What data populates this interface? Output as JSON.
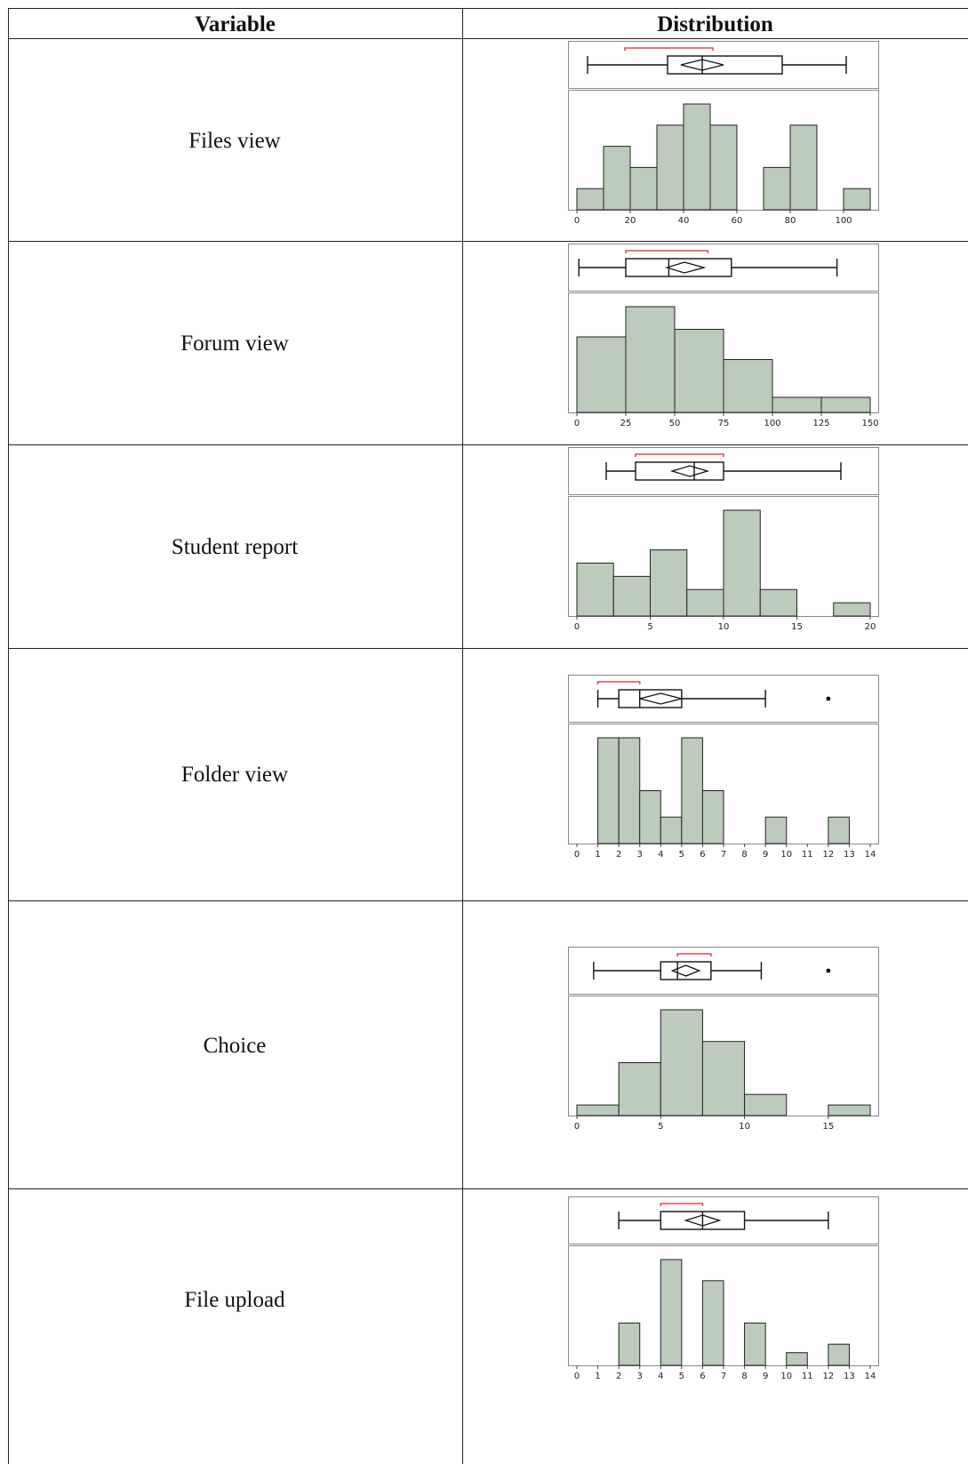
{
  "table": {
    "headers": {
      "variable": "Variable",
      "distribution": "Distribution"
    }
  },
  "chart_data": [
    {
      "type": "bar",
      "variable": "Files view",
      "xlim": [
        0,
        110
      ],
      "ticks": [
        0,
        20,
        40,
        60,
        80,
        100
      ],
      "bins": [
        [
          0,
          10
        ],
        [
          10,
          20
        ],
        [
          20,
          30
        ],
        [
          30,
          40
        ],
        [
          40,
          50
        ],
        [
          50,
          60
        ],
        [
          60,
          70
        ],
        [
          70,
          80
        ],
        [
          80,
          90
        ],
        [
          90,
          100
        ],
        [
          100,
          110
        ]
      ],
      "counts": [
        1,
        3,
        2,
        4,
        5,
        4,
        0,
        2,
        4,
        0,
        1
      ],
      "boxplot": {
        "whisker_low": 4,
        "q1": 34,
        "median": 47,
        "q3": 77,
        "whisker_high": 101,
        "mean": 47,
        "ci": [
          39,
          55
        ],
        "shortest_half": [
          18,
          51
        ],
        "outliers": []
      },
      "fill_color": "#bccbbb",
      "shortest_half_color": "#e8494f"
    },
    {
      "type": "bar",
      "variable": "Forum view",
      "xlim": [
        0,
        150
      ],
      "ticks": [
        0,
        25,
        50,
        75,
        100,
        125,
        150
      ],
      "bins": [
        [
          0,
          25
        ],
        [
          25,
          50
        ],
        [
          50,
          75
        ],
        [
          75,
          100
        ],
        [
          100,
          125
        ],
        [
          125,
          150
        ]
      ],
      "counts": [
        5,
        7,
        5.5,
        3.5,
        1,
        1
      ],
      "boxplot": {
        "whisker_low": 1,
        "q1": 25,
        "median": 47,
        "q3": 79,
        "whisker_high": 133,
        "mean": 55,
        "ci": [
          46,
          65
        ],
        "shortest_half": [
          25,
          67
        ],
        "outliers": []
      },
      "fill_color": "#bccbbb",
      "shortest_half_color": "#e8494f"
    },
    {
      "type": "bar",
      "variable": "Student report",
      "xlim": [
        0,
        20
      ],
      "ticks": [
        0,
        5,
        10,
        15,
        20
      ],
      "bins": [
        [
          0,
          2.5
        ],
        [
          2.5,
          5
        ],
        [
          5,
          7.5
        ],
        [
          7.5,
          10
        ],
        [
          10,
          12.5
        ],
        [
          12.5,
          15
        ],
        [
          15,
          17.5
        ],
        [
          17.5,
          20
        ]
      ],
      "counts": [
        4,
        3,
        5,
        2,
        8,
        2,
        0,
        1
      ],
      "boxplot": {
        "whisker_low": 2,
        "q1": 4,
        "median": 8,
        "q3": 10,
        "whisker_high": 18,
        "mean": 7.7,
        "ci": [
          6.5,
          8.9
        ],
        "shortest_half": [
          4,
          10
        ],
        "outliers": []
      },
      "fill_color": "#bccbbb",
      "shortest_half_color": "#e8494f"
    },
    {
      "type": "bar",
      "variable": "Folder view",
      "xlim": [
        0,
        14
      ],
      "ticks": [
        0,
        1,
        2,
        3,
        4,
        5,
        6,
        7,
        8,
        9,
        10,
        11,
        12,
        13,
        14
      ],
      "bins": [
        [
          1,
          2
        ],
        [
          2,
          3
        ],
        [
          3,
          4
        ],
        [
          4,
          5
        ],
        [
          5,
          6
        ],
        [
          6,
          7
        ],
        [
          7,
          8
        ],
        [
          8,
          9
        ],
        [
          9,
          10
        ],
        [
          10,
          11
        ],
        [
          11,
          12
        ],
        [
          12,
          13
        ]
      ],
      "counts": [
        4,
        4,
        2,
        1,
        4,
        2,
        0,
        0,
        1,
        0,
        0,
        1
      ],
      "boxplot": {
        "whisker_low": 1,
        "q1": 2,
        "median": 3,
        "q3": 5,
        "whisker_high": 9,
        "mean": 4,
        "ci": [
          3,
          5
        ],
        "shortest_half": [
          1,
          3
        ],
        "outliers": [
          12
        ]
      },
      "fill_color": "#bccbbb",
      "shortest_half_color": "#e8494f"
    },
    {
      "type": "bar",
      "variable": "Choice",
      "xlim": [
        0,
        17.5
      ],
      "ticks": [
        0,
        5,
        10,
        15
      ],
      "bins": [
        [
          0,
          2.5
        ],
        [
          2.5,
          5
        ],
        [
          5,
          7.5
        ],
        [
          7.5,
          10
        ],
        [
          10,
          12.5
        ],
        [
          12.5,
          15
        ],
        [
          15,
          17.5
        ]
      ],
      "counts": [
        1,
        5,
        10,
        7,
        2,
        0,
        1
      ],
      "boxplot": {
        "whisker_low": 1,
        "q1": 5,
        "median": 6,
        "q3": 8,
        "whisker_high": 11,
        "mean": 6.5,
        "ci": [
          5.7,
          7.3
        ],
        "shortest_half": [
          6,
          8
        ],
        "outliers": [
          15
        ]
      },
      "fill_color": "#bccbbb",
      "shortest_half_color": "#e8494f"
    },
    {
      "type": "bar",
      "variable": "File upload",
      "xlim": [
        0,
        14
      ],
      "ticks": [
        0,
        1,
        2,
        3,
        4,
        5,
        6,
        7,
        8,
        9,
        10,
        11,
        12,
        13,
        14
      ],
      "bins": [
        [
          2,
          3
        ],
        [
          3,
          4
        ],
        [
          4,
          5
        ],
        [
          5,
          6
        ],
        [
          6,
          7
        ],
        [
          7,
          8
        ],
        [
          8,
          9
        ],
        [
          9,
          10
        ],
        [
          10,
          11
        ],
        [
          11,
          12
        ],
        [
          12,
          13
        ]
      ],
      "counts": [
        2,
        0,
        5,
        0,
        4,
        0,
        2,
        0,
        0.6,
        0,
        1
      ],
      "boxplot": {
        "whisker_low": 2,
        "q1": 4,
        "median": 6,
        "q3": 8,
        "whisker_high": 12,
        "mean": 6,
        "ci": [
          5.2,
          6.8
        ],
        "shortest_half": [
          4,
          6
        ],
        "outliers": []
      },
      "fill_color": "#bccbbb",
      "shortest_half_color": "#e8494f"
    }
  ]
}
